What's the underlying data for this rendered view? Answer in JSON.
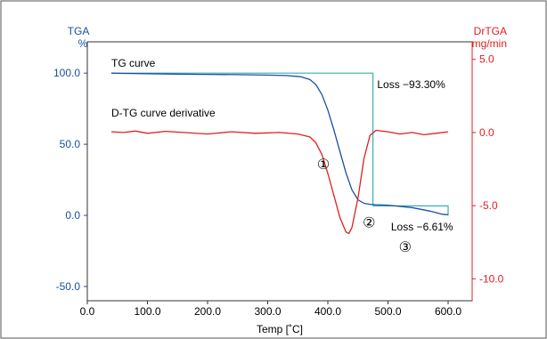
{
  "chart_data": {
    "type": "line",
    "xlabel": "Temp [˚C]",
    "x_ticks": [
      "0.0",
      "100.0",
      "200.0",
      "300.0",
      "400.0",
      "500.0",
      "600.0"
    ],
    "xlim": [
      0,
      640
    ],
    "left_axis": {
      "title_line1": "TGA",
      "title_line2": "%",
      "ticks": [
        "-50.0",
        "0.0",
        "50.0",
        "100.0"
      ],
      "ylim": [
        -60,
        122
      ],
      "color": "#1a4fa0"
    },
    "right_axis": {
      "title_line1": "DrTGA",
      "title_line2": "mg/min",
      "ticks": [
        "-10.0",
        "-5.0",
        "0.0",
        "5.0"
      ],
      "ylim": [
        -11.5,
        6.2
      ],
      "color": "#e02020"
    },
    "series": [
      {
        "label": "TG curve",
        "axis": "left",
        "color": "#1a4fa0",
        "x": [
          40,
          60,
          100,
          150,
          200,
          250,
          300,
          330,
          355,
          370,
          380,
          390,
          400,
          410,
          420,
          430,
          440,
          450,
          460,
          470,
          480,
          500,
          540,
          570,
          590,
          600
        ],
        "y": [
          100,
          99.8,
          99.6,
          99.3,
          99.1,
          98.9,
          98.6,
          98.3,
          97.5,
          95.5,
          92,
          85,
          74,
          60,
          45,
          30,
          18,
          11,
          8.5,
          7.8,
          7.5,
          7.2,
          5.5,
          3,
          0.8,
          0.5
        ]
      },
      {
        "label": "D-TG curve derivative",
        "axis": "right",
        "color": "#e02020",
        "x": [
          40,
          60,
          80,
          100,
          130,
          160,
          200,
          240,
          280,
          320,
          350,
          370,
          380,
          390,
          400,
          410,
          420,
          430,
          435,
          440,
          450,
          460,
          470,
          480,
          500,
          520,
          540,
          560,
          580,
          600
        ],
        "y": [
          0.05,
          0.0,
          0.1,
          -0.05,
          0.08,
          0.0,
          -0.1,
          0.05,
          -0.05,
          0.0,
          -0.1,
          -0.3,
          -0.7,
          -1.5,
          -2.8,
          -4.3,
          -5.8,
          -6.8,
          -6.9,
          -6.5,
          -4.5,
          -1.8,
          -0.2,
          0.15,
          0.05,
          -0.1,
          0.0,
          -0.15,
          -0.05,
          0.05
        ]
      }
    ],
    "loss_markers": [
      {
        "label": "Loss  −93.30%",
        "x_step": 475,
        "y_top": 100,
        "y_bottom": 6.7,
        "x_start": 40,
        "color": "#3aaeb0",
        "label_x": 482,
        "label_y": 92
      },
      {
        "label": "Loss  −6.61%",
        "x_start": 475,
        "x_end": 600,
        "y_top": 6.7,
        "y_bottom": 0,
        "color": "#3aaeb0",
        "label_x": 505,
        "label_y": -8
      }
    ],
    "annotations": [
      {
        "text": "TG curve",
        "x": 40,
        "y": 107,
        "axis": "left"
      },
      {
        "text": "D-TG curve derivative",
        "x": 40,
        "y": 72,
        "axis": "left"
      },
      {
        "text": "①",
        "x": 382,
        "y": 35,
        "axis": "left"
      },
      {
        "text": "②",
        "x": 458,
        "y": -6,
        "axis": "left"
      },
      {
        "text": "③",
        "x": 518,
        "y": -23,
        "axis": "left"
      }
    ],
    "grid": false,
    "frame_color": "#333333"
  }
}
